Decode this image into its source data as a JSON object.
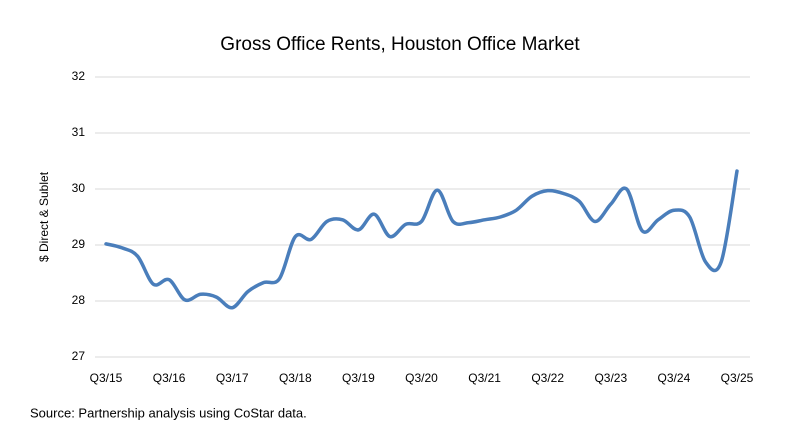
{
  "chart_data": {
    "type": "line",
    "title": "Gross Office Rents, Houston Office Market",
    "ylabel": "$ Direct & Sublet",
    "source": "Source: Partnership analysis using CoStar data.",
    "categories": [
      "Q3/15",
      null,
      null,
      null,
      "Q3/16",
      null,
      null,
      null,
      "Q3/17",
      null,
      null,
      null,
      "Q3/18",
      null,
      null,
      null,
      "Q3/19",
      null,
      null,
      null,
      "Q3/20",
      null,
      null,
      null,
      "Q3/21",
      null,
      null,
      null,
      "Q3/22",
      null,
      null,
      null,
      "Q3/23",
      null,
      null,
      null,
      "Q3/24",
      null,
      null,
      null,
      "Q3/25"
    ],
    "series": [
      {
        "name": "Gross Office Rents",
        "color": "#4a7ebb",
        "values": [
          29.02,
          28.95,
          28.8,
          28.3,
          28.38,
          28.02,
          28.12,
          28.07,
          27.88,
          28.17,
          28.33,
          28.4,
          29.15,
          29.1,
          29.42,
          29.45,
          29.27,
          29.55,
          29.15,
          29.37,
          29.42,
          29.98,
          29.42,
          29.4,
          29.45,
          29.5,
          29.62,
          29.87,
          29.97,
          29.92,
          29.78,
          29.42,
          29.73,
          30.0,
          29.25,
          29.45,
          29.62,
          29.5,
          28.7,
          28.7,
          30.32
        ]
      }
    ],
    "ylim": [
      27,
      32
    ],
    "yticks": [
      27,
      28,
      29,
      30,
      31,
      32
    ],
    "grid": true
  }
}
